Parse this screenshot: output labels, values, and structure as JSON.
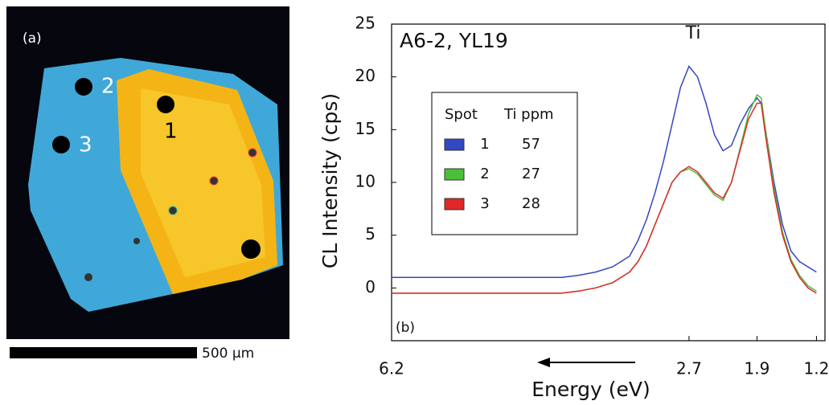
{
  "image_panel": {
    "label": "(a)",
    "spot_labels": [
      "2",
      "3",
      "1"
    ],
    "scale_bar": "500 μm"
  },
  "chart_data": {
    "type": "line",
    "panel_label": "(b)",
    "annotation": "A6-2, YL19",
    "peak_label": "Ti",
    "x_label": "Energy (eV)",
    "y_label": "CL Intensity (cps)",
    "legend_headers": [
      "Spot",
      "Ti ppm"
    ],
    "x": [
      6.2,
      6.0,
      5.8,
      5.6,
      5.4,
      5.2,
      5.0,
      4.8,
      4.6,
      4.4,
      4.2,
      4.0,
      3.8,
      3.6,
      3.4,
      3.3,
      3.2,
      3.1,
      3.0,
      2.9,
      2.8,
      2.7,
      2.6,
      2.5,
      2.4,
      2.3,
      2.2,
      2.1,
      2.0,
      1.9,
      1.85,
      1.8,
      1.7,
      1.6,
      1.5,
      1.4,
      1.3,
      1.2
    ],
    "series": [
      {
        "name": "1",
        "ti_ppm": 57,
        "color": "#3446c0",
        "values": [
          1,
          1,
          1,
          1,
          1,
          1,
          1,
          1,
          1,
          1,
          1,
          1.2,
          1.5,
          2,
          3,
          4.5,
          6.5,
          9,
          12,
          15.5,
          19,
          21,
          20,
          17.5,
          14.5,
          13,
          13.5,
          15.5,
          17,
          18,
          17.5,
          15,
          10,
          6,
          3.5,
          2.5,
          2,
          1.5
        ]
      },
      {
        "name": "2",
        "ti_ppm": 27,
        "color": "#4cbf3a",
        "values": [
          -0.5,
          -0.5,
          -0.5,
          -0.5,
          -0.5,
          -0.5,
          -0.5,
          -0.5,
          -0.5,
          -0.5,
          -0.5,
          -0.3,
          0,
          0.5,
          1.5,
          2.5,
          4,
          6,
          8,
          10,
          11,
          11.3,
          10.8,
          9.8,
          8.8,
          8.3,
          10,
          13.2,
          16.5,
          18.3,
          18,
          15,
          9.5,
          5.3,
          2.7,
          1.2,
          0.2,
          -0.3
        ]
      },
      {
        "name": "3",
        "ti_ppm": 28,
        "color": "#e0282a",
        "values": [
          -0.5,
          -0.5,
          -0.5,
          -0.5,
          -0.5,
          -0.5,
          -0.5,
          -0.5,
          -0.5,
          -0.5,
          -0.5,
          -0.3,
          0,
          0.5,
          1.5,
          2.5,
          4,
          6,
          8,
          10,
          11,
          11.5,
          11,
          10,
          9,
          8.5,
          10,
          13,
          16,
          17.5,
          17.5,
          14.5,
          9,
          5,
          2.5,
          1,
          0,
          -0.5
        ]
      }
    ],
    "xlim": [
      6.2,
      1.1
    ],
    "xticks": [
      6.2,
      2.7,
      1.9,
      1.2
    ],
    "ylim": [
      -5,
      25
    ],
    "yticks": [
      0,
      5,
      10,
      15,
      20,
      25
    ]
  }
}
